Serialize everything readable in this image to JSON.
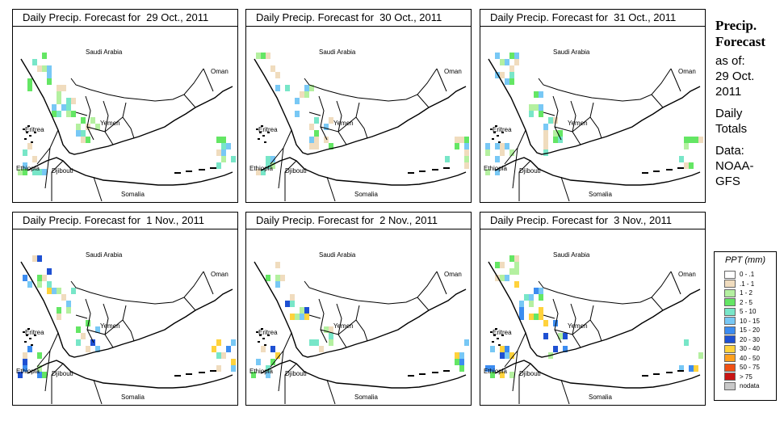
{
  "panels": [
    {
      "title": "Daily Precip. Forecast for  29 Oct., 2011",
      "day": 0
    },
    {
      "title": "Daily Precip. Forecast for  30 Oct., 2011",
      "day": 1
    },
    {
      "title": "Daily Precip. Forecast for  31 Oct., 2011",
      "day": 2
    },
    {
      "title": "Daily Precip. Forecast for  1 Nov., 2011",
      "day": 3
    },
    {
      "title": "Daily Precip. Forecast for  2 Nov., 2011",
      "day": 4
    },
    {
      "title": "Daily Precip. Forecast for  3 Nov., 2011",
      "day": 5
    }
  ],
  "country_labels": {
    "saudi_arabia": "Saudi Arabia",
    "oman": "Oman",
    "yemen": "Yemen",
    "eritrea": "Eritrea",
    "ethiopia": "Ethiopia",
    "djibouti": "Djibouti",
    "somalia": "Somalia"
  },
  "side_info": {
    "heading_line1": "Precip.",
    "heading_line2": "Forecast",
    "asof_label": "as of:",
    "date_line1": "29 Oct.",
    "date_line2": "2011",
    "totals_line1": "Daily",
    "totals_line2": "Totals",
    "data_line1": "Data:",
    "data_line2": "NOAA-",
    "data_line3": "GFS"
  },
  "legend": {
    "title": "PPT (mm)",
    "items": [
      {
        "label": "0 - .1",
        "color": "#ffffff"
      },
      {
        "label": ".1 - 1",
        "color": "#f0dcbe"
      },
      {
        "label": "1 - 2",
        "color": "#b4f0a0"
      },
      {
        "label": "2 - 5",
        "color": "#64e664"
      },
      {
        "label": "5 - 10",
        "color": "#78e6c8"
      },
      {
        "label": "10 - 15",
        "color": "#78c8f5"
      },
      {
        "label": "15 - 20",
        "color": "#3c8cf0"
      },
      {
        "label": "20 - 30",
        "color": "#1e50d2"
      },
      {
        "label": "30 - 40",
        "color": "#ffd23c"
      },
      {
        "label": "40 - 50",
        "color": "#ffa01e"
      },
      {
        "label": "50 - 75",
        "color": "#f05014"
      },
      {
        "label": "> 75",
        "color": "#c81414"
      },
      {
        "label": "nodata",
        "color": "#c8c8c8"
      }
    ]
  }
}
